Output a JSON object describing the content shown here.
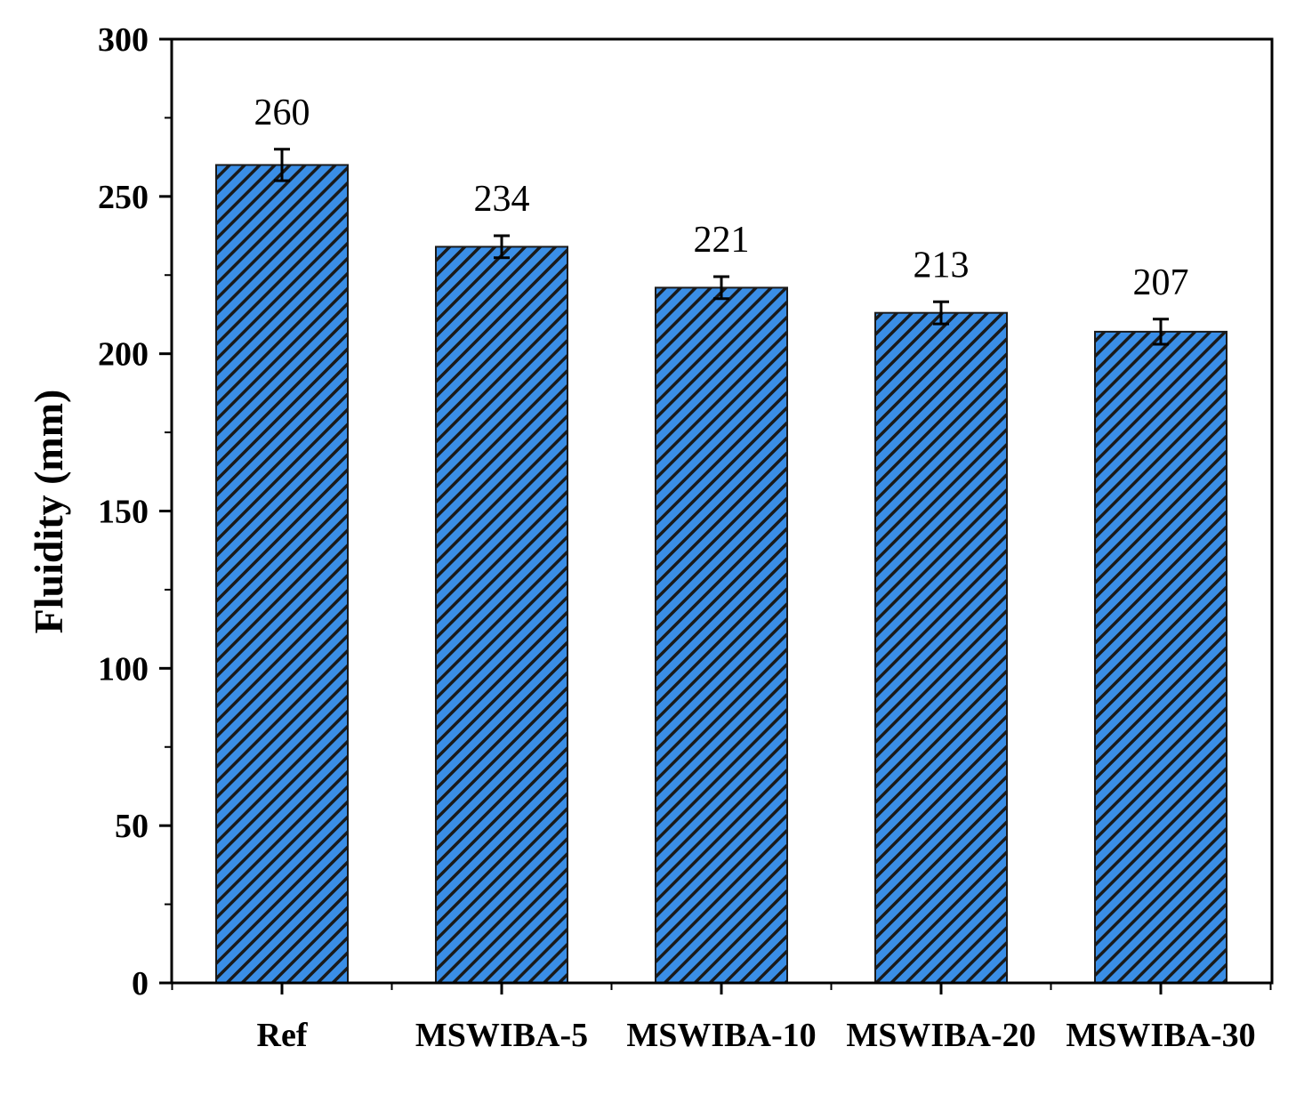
{
  "chart_data": {
    "type": "bar",
    "title": "",
    "xlabel": "",
    "ylabel": "Fluidity (mm)",
    "ylim": [
      0,
      300
    ],
    "yticks": [
      0,
      50,
      100,
      150,
      200,
      250,
      300
    ],
    "grid": false,
    "legend": "none",
    "categories": [
      "Ref",
      "MSWIBA-5",
      "MSWIBA-10",
      "MSWIBA-20",
      "MSWIBA-30"
    ],
    "values": [
      260,
      234,
      221,
      213,
      207
    ],
    "data_labels": [
      "260",
      "234",
      "221",
      "213",
      "207"
    ],
    "errors": [
      5,
      3.5,
      3.5,
      3.5,
      4
    ],
    "colors": {
      "bar_fill": "#3a8ee6",
      "hatch": "#1a1a1a",
      "axis": "#000000"
    }
  }
}
